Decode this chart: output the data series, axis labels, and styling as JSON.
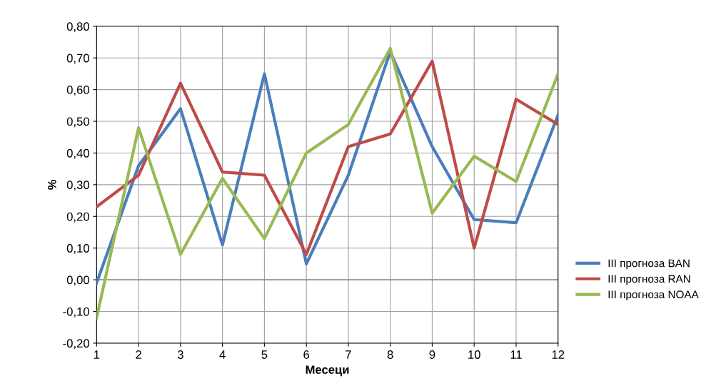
{
  "chart_data": {
    "type": "line",
    "xlabel": "Месеци",
    "ylabel": "%",
    "categories": [
      "1",
      "2",
      "3",
      "4",
      "5",
      "6",
      "7",
      "8",
      "9",
      "10",
      "11",
      "12"
    ],
    "series": [
      {
        "name": "III прогноза BAN",
        "color": "#4a7ebb",
        "values": [
          -0.01,
          0.36,
          0.54,
          0.11,
          0.65,
          0.05,
          0.33,
          0.72,
          0.42,
          0.19,
          0.18,
          0.52
        ]
      },
      {
        "name": "III прогноза RAN",
        "color": "#be4b48",
        "values": [
          0.23,
          0.33,
          0.62,
          0.34,
          0.33,
          0.08,
          0.42,
          0.46,
          0.69,
          0.1,
          0.57,
          0.49
        ]
      },
      {
        "name": "III прогноза NOAA",
        "color": "#98b954",
        "values": [
          -0.12,
          0.48,
          0.08,
          0.32,
          0.13,
          0.4,
          0.49,
          0.73,
          0.21,
          0.39,
          0.31,
          0.65
        ]
      }
    ],
    "ylim": [
      -0.2,
      0.8
    ],
    "yticks": [
      {
        "value": -0.2,
        "label": "-0,20"
      },
      {
        "value": -0.1,
        "label": "-0,10"
      },
      {
        "value": 0,
        "label": "0,00"
      },
      {
        "value": 0.1,
        "label": "0,10"
      },
      {
        "value": 0.2,
        "label": "0,20"
      },
      {
        "value": 0.3,
        "label": "0,30"
      },
      {
        "value": 0.4,
        "label": "0,40"
      },
      {
        "value": 0.5,
        "label": "0,50"
      },
      {
        "value": 0.6,
        "label": "0,60"
      },
      {
        "value": 0.7,
        "label": "0,70"
      },
      {
        "value": 0.8,
        "label": "0,80"
      }
    ],
    "grid": true,
    "legend": "right",
    "marker": "none",
    "line_style": "solid"
  }
}
